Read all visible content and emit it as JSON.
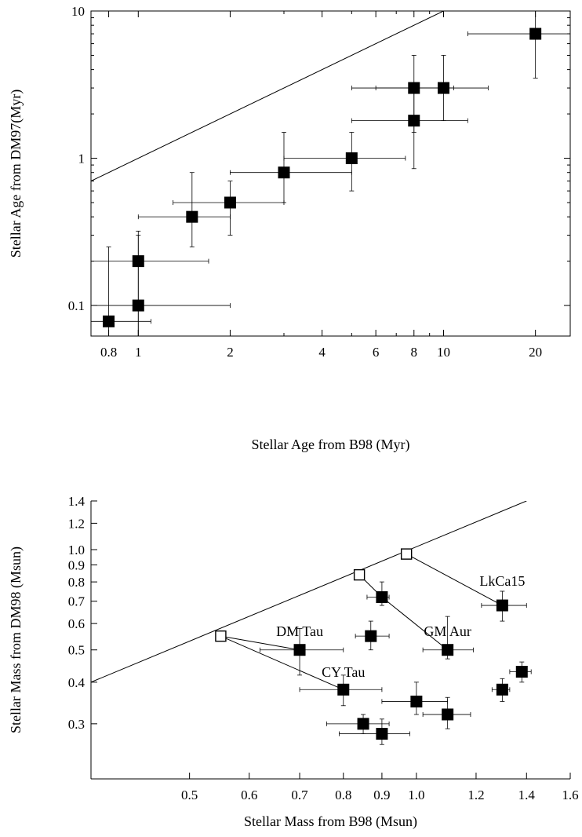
{
  "chart_data": [
    {
      "type": "scatter",
      "title": "",
      "xlabel": "Stellar Age from B98 (Myr)",
      "ylabel": "Stellar Age from DM97(Myr)",
      "xscale": "log",
      "yscale": "log",
      "xlim": [
        0.7,
        26
      ],
      "ylim": [
        0.062,
        10
      ],
      "xticks": [
        {
          "value": 0.8,
          "label": "0.8"
        },
        {
          "value": 1,
          "label": "1"
        },
        {
          "value": 2,
          "label": "2"
        },
        {
          "value": 4,
          "label": "4"
        },
        {
          "value": 6,
          "label": "6"
        },
        {
          "value": 8,
          "label": "8"
        },
        {
          "value": 10,
          "label": "10"
        },
        {
          "value": 20,
          "label": "20"
        }
      ],
      "yticks": [
        {
          "value": 0.1,
          "label": "0.1"
        },
        {
          "value": 1,
          "label": "1"
        },
        {
          "value": 10,
          "label": "10"
        }
      ],
      "reference_line": {
        "x": [
          0.7,
          10
        ],
        "y": [
          0.7,
          10
        ]
      },
      "points": [
        {
          "x": 0.8,
          "y": 0.078,
          "xerr": [
            0.7,
            1.1
          ],
          "yerr": [
            0.062,
            0.25
          ]
        },
        {
          "x": 1,
          "y": 0.1,
          "xerr": [
            0.7,
            2
          ],
          "yerr": [
            0.062,
            0.3
          ]
        },
        {
          "x": 1,
          "y": 0.2,
          "xerr": [
            0.7,
            1.7
          ],
          "yerr": [
            0.062,
            0.32
          ]
        },
        {
          "x": 1.5,
          "y": 0.4,
          "xerr": [
            1,
            2
          ],
          "yerr": [
            0.25,
            0.8
          ]
        },
        {
          "x": 2,
          "y": 0.5,
          "xerr": [
            1.3,
            3
          ],
          "yerr": [
            0.3,
            0.7
          ]
        },
        {
          "x": 3,
          "y": 0.8,
          "xerr": [
            2,
            5
          ],
          "yerr": [
            0.5,
            1.5
          ]
        },
        {
          "x": 5,
          "y": 1,
          "xerr": [
            3,
            7.5
          ],
          "yerr": [
            0.6,
            1.5
          ]
        },
        {
          "x": 8,
          "y": 1.8,
          "xerr": [
            5,
            12
          ],
          "yerr": [
            0.85,
            3
          ]
        },
        {
          "x": 8,
          "y": 3,
          "xerr": [
            5,
            10.8
          ],
          "yerr": [
            1.5,
            5
          ]
        },
        {
          "x": 10,
          "y": 3,
          "xerr": [
            6,
            14
          ],
          "yerr": [
            1.8,
            5
          ]
        },
        {
          "x": 20,
          "y": 7,
          "xerr": [
            12,
            26
          ],
          "yerr": [
            3.5,
            10
          ]
        }
      ]
    },
    {
      "type": "scatter",
      "title": "",
      "xlabel": "Stellar Mass from B98 (Msun)",
      "ylabel": "Stellar Mass from DM98 (Msun)",
      "xscale": "log",
      "yscale": "log",
      "xlim": [
        0.37,
        1.6
      ],
      "ylim": [
        0.205,
        1.4
      ],
      "xticks": [
        {
          "value": 0.5,
          "label": "0.5"
        },
        {
          "value": 0.6,
          "label": "0.6"
        },
        {
          "value": 0.7,
          "label": "0.7"
        },
        {
          "value": 0.8,
          "label": "0.8"
        },
        {
          "value": 0.9,
          "label": "0.9"
        },
        {
          "value": 1.0,
          "label": "1.0"
        },
        {
          "value": 1.2,
          "label": "1.2"
        },
        {
          "value": 1.4,
          "label": "1.4"
        },
        {
          "value": 1.6,
          "label": "1.6"
        }
      ],
      "yticks": [
        {
          "value": 0.3,
          "label": "0.3"
        },
        {
          "value": 0.4,
          "label": "0.4"
        },
        {
          "value": 0.5,
          "label": "0.5"
        },
        {
          "value": 0.6,
          "label": "0.6"
        },
        {
          "value": 0.7,
          "label": "0.7"
        },
        {
          "value": 0.8,
          "label": "0.8"
        },
        {
          "value": 0.9,
          "label": "0.9"
        },
        {
          "value": 1.0,
          "label": "1.0"
        },
        {
          "value": 1.2,
          "label": "1.2"
        },
        {
          "value": 1.4,
          "label": "1.4"
        }
      ],
      "reference_line": {
        "x": [
          0.37,
          1.4
        ],
        "y": [
          0.4,
          1.4
        ]
      },
      "open_points": [
        {
          "x": 0.55,
          "y": 0.55
        },
        {
          "x": 0.84,
          "y": 0.84
        },
        {
          "x": 0.97,
          "y": 0.97
        }
      ],
      "connectors": [
        [
          0.55,
          0.55,
          0.7,
          0.5
        ],
        [
          0.55,
          0.55,
          0.8,
          0.38
        ],
        [
          0.84,
          0.84,
          0.9,
          0.72
        ],
        [
          0.9,
          0.72,
          1.1,
          0.5
        ],
        [
          0.97,
          0.97,
          1.3,
          0.68
        ]
      ],
      "points": [
        {
          "x": 0.7,
          "y": 0.5,
          "xerr": [
            0.62,
            0.8
          ],
          "yerr": [
            0.42,
            0.58
          ]
        },
        {
          "x": 0.8,
          "y": 0.38,
          "xerr": [
            0.7,
            0.9
          ],
          "yerr": [
            0.34,
            0.42
          ]
        },
        {
          "x": 0.87,
          "y": 0.55,
          "xerr": [
            0.83,
            0.92
          ],
          "yerr": [
            0.5,
            0.61
          ]
        },
        {
          "x": 0.9,
          "y": 0.72,
          "xerr": [
            0.86,
            0.92
          ],
          "yerr": [
            0.68,
            0.8
          ]
        },
        {
          "x": 1.1,
          "y": 0.5,
          "xerr": [
            1.02,
            1.19
          ],
          "yerr": [
            0.47,
            0.63
          ]
        },
        {
          "x": 1.3,
          "y": 0.68,
          "xerr": [
            1.22,
            1.4
          ],
          "yerr": [
            0.61,
            0.75
          ]
        },
        {
          "x": 1.0,
          "y": 0.35,
          "xerr": [
            0.9,
            1.1
          ],
          "yerr": [
            0.32,
            0.4
          ]
        },
        {
          "x": 1.1,
          "y": 0.32,
          "xerr": [
            1.02,
            1.18
          ],
          "yerr": [
            0.29,
            0.36
          ]
        },
        {
          "x": 0.85,
          "y": 0.3,
          "xerr": [
            0.76,
            0.92
          ],
          "yerr": [
            0.28,
            0.32
          ]
        },
        {
          "x": 0.9,
          "y": 0.28,
          "xerr": [
            0.79,
            0.98
          ],
          "yerr": [
            0.26,
            0.31
          ]
        },
        {
          "x": 1.3,
          "y": 0.38,
          "xerr": [
            1.26,
            1.33
          ],
          "yerr": [
            0.35,
            0.41
          ]
        },
        {
          "x": 1.38,
          "y": 0.43,
          "xerr": [
            1.33,
            1.42
          ],
          "yerr": [
            0.4,
            0.46
          ]
        }
      ],
      "annotations": [
        {
          "text": "LkCa15",
          "x": 1.3,
          "y": 0.78
        },
        {
          "text": "DM Tau",
          "x": 0.7,
          "y": 0.55
        },
        {
          "text": "GM Aur",
          "x": 1.1,
          "y": 0.55
        },
        {
          "text": "CY Tau",
          "x": 0.8,
          "y": 0.415
        }
      ]
    }
  ]
}
